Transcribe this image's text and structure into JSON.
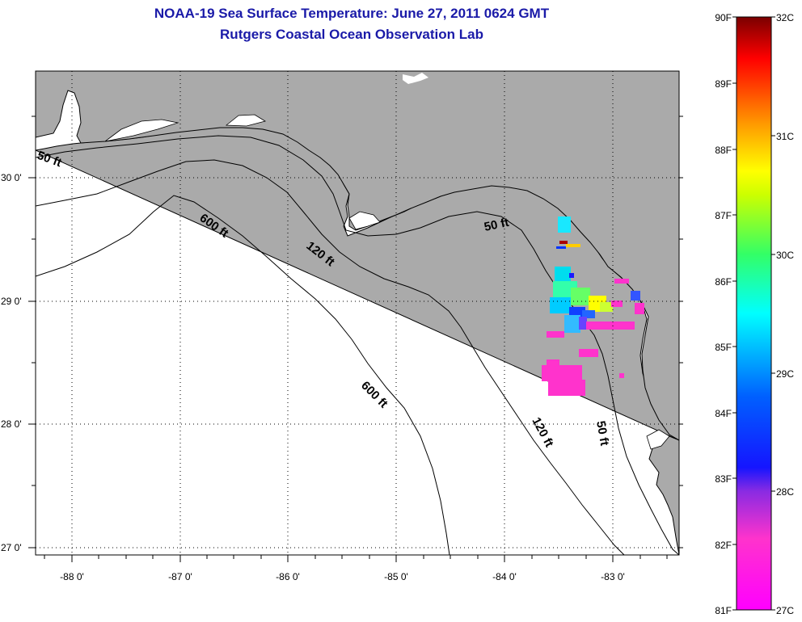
{
  "header": {
    "title": "NOAA-19 Sea Surface Temperature:  June 27, 2011 0624 GMT",
    "subtitle": "Rutgers Coastal Ocean Observation Lab"
  },
  "map": {
    "lon_labels": [
      "-88 0'",
      "-87 0'",
      "-86 0'",
      "-85 0'",
      "-84 0'",
      "-83 0'"
    ],
    "lat_labels": [
      "30 0'",
      "29 0'",
      "28 0'",
      "27 0'"
    ],
    "contour_labels": {
      "west_50": "50 ft",
      "upper_600": "600 ft",
      "upper_120": "120 ft",
      "east_50_north": "50 ft",
      "lower_600": "600 ft",
      "lower_120": "120 ft",
      "east_50_south": "50 ft"
    },
    "colors": {
      "land": "#aaaaaa",
      "water": "#ffffff",
      "border": "#000000",
      "grid": "#000000"
    }
  },
  "colorbar": {
    "f_labels": [
      "90F",
      "89F",
      "88F",
      "87F",
      "86F",
      "85F",
      "84F",
      "83F",
      "82F",
      "81F"
    ],
    "c_labels": [
      "32C",
      "31C",
      "30C",
      "29C",
      "28C",
      "27C"
    ]
  }
}
